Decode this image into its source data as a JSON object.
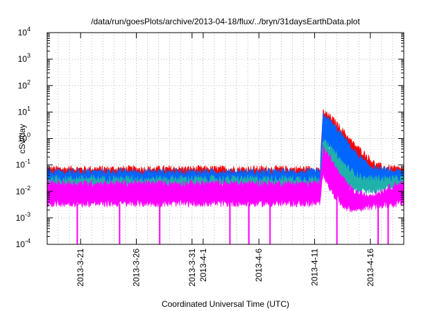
{
  "chart_data": {
    "type": "line",
    "title": "/data/run/goesPlots/archive/2013-04-18/flux/../bryn/31daysEarthData.plot",
    "xlabel": "Coordinated Universal Time (UTC)",
    "ylabel": "cSv/day",
    "yscale": "log",
    "ylim": [
      0.0001,
      10000
    ],
    "xlim": [
      "2013-03-18",
      "2013-04-19"
    ],
    "grid": true,
    "y_ticks": [
      {
        "base": "10",
        "exp": "-4"
      },
      {
        "base": "10",
        "exp": "-3"
      },
      {
        "base": "10",
        "exp": "-2"
      },
      {
        "base": "10",
        "exp": "-1"
      },
      {
        "base": "10",
        "exp": "0"
      },
      {
        "base": "10",
        "exp": "1"
      },
      {
        "base": "10",
        "exp": "2"
      },
      {
        "base": "10",
        "exp": "3"
      },
      {
        "base": "10",
        "exp": "4"
      }
    ],
    "x_ticks": [
      {
        "label": "2013-3-21",
        "date": "2013-03-21"
      },
      {
        "label": "2013-3-26",
        "date": "2013-03-26"
      },
      {
        "label": "2013-3-31",
        "date": "2013-03-31"
      },
      {
        "label": "2013-4-1",
        "date": "2013-04-01"
      },
      {
        "label": "2013-4-6",
        "date": "2013-04-06"
      },
      {
        "label": "2013-4-11",
        "date": "2013-04-11"
      },
      {
        "label": "2013-4-16",
        "date": "2013-04-16"
      }
    ],
    "series": [
      {
        "color": "#ff0000",
        "upper": [
          [
            0,
            0.07
          ],
          [
            24.5,
            0.07
          ],
          [
            24.75,
            10
          ],
          [
            25.5,
            6
          ],
          [
            26.5,
            2
          ],
          [
            27.5,
            0.6
          ],
          [
            28.5,
            0.25
          ],
          [
            29.5,
            0.1
          ],
          [
            30.25,
            0.08
          ],
          [
            31.5,
            0.07
          ]
        ],
        "lower": [
          [
            0,
            0.03
          ],
          [
            24.5,
            0.03
          ],
          [
            24.75,
            2
          ],
          [
            25.5,
            1
          ],
          [
            26.5,
            0.3
          ],
          [
            27.5,
            0.1
          ],
          [
            28.5,
            0.05
          ],
          [
            31.5,
            0.03
          ]
        ]
      },
      {
        "color": "#0066ff",
        "upper": [
          [
            0,
            0.055
          ],
          [
            24.5,
            0.055
          ],
          [
            24.75,
            8
          ],
          [
            25.5,
            4
          ],
          [
            26.5,
            1.2
          ],
          [
            27.5,
            0.35
          ],
          [
            28.5,
            0.12
          ],
          [
            29.5,
            0.07
          ],
          [
            31.5,
            0.055
          ]
        ],
        "lower": [
          [
            0,
            0.02
          ],
          [
            24.5,
            0.02
          ],
          [
            24.75,
            0.8
          ],
          [
            25.5,
            0.3
          ],
          [
            26.5,
            0.07
          ],
          [
            27.5,
            0.03
          ],
          [
            28.5,
            0.015
          ],
          [
            29.5,
            0.012
          ],
          [
            30.25,
            0.02
          ],
          [
            31.5,
            0.02
          ]
        ]
      },
      {
        "color": "#20b2aa",
        "upper": [
          [
            0,
            0.03
          ],
          [
            24.5,
            0.03
          ],
          [
            24.75,
            0.8
          ],
          [
            25.5,
            0.4
          ],
          [
            26.5,
            0.12
          ],
          [
            27.5,
            0.05
          ],
          [
            28.5,
            0.03
          ],
          [
            31.5,
            0.03
          ]
        ],
        "lower": [
          [
            0,
            0.015
          ],
          [
            24.5,
            0.015
          ],
          [
            24.75,
            0.2
          ],
          [
            25.5,
            0.06
          ],
          [
            26.5,
            0.02
          ],
          [
            27.5,
            0.012
          ],
          [
            28.5,
            0.01
          ],
          [
            31.5,
            0.015
          ]
        ]
      },
      {
        "color": "#ff00ff",
        "upper": [
          [
            0,
            0.02
          ],
          [
            24.5,
            0.02
          ],
          [
            24.75,
            0.5
          ],
          [
            25.5,
            0.15
          ],
          [
            26.5,
            0.03
          ],
          [
            27.5,
            0.01
          ],
          [
            28.5,
            0.007
          ],
          [
            29.5,
            0.008
          ],
          [
            31.5,
            0.02
          ]
        ],
        "lower": [
          [
            0,
            0.0035
          ],
          [
            24.5,
            0.0035
          ],
          [
            24.75,
            0.05
          ],
          [
            25.5,
            0.01
          ],
          [
            26.5,
            0.003
          ],
          [
            27.5,
            0.002
          ],
          [
            28.5,
            0.0025
          ],
          [
            31.5,
            0.0035
          ]
        ]
      }
    ],
    "dropouts_days": [
      2.7,
      6.5,
      10.1,
      16.4,
      18.1,
      20.0,
      26.0,
      29.7,
      30.6
    ]
  }
}
